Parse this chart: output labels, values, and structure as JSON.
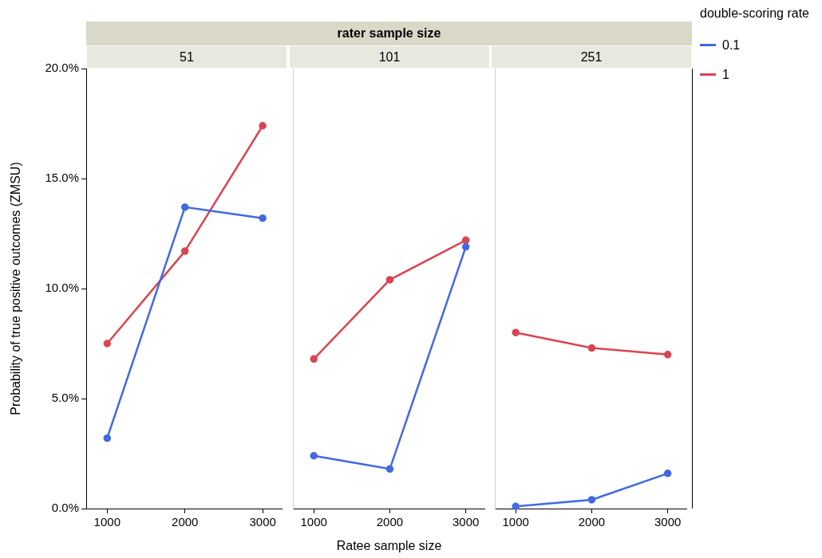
{
  "chart_data": [
    {
      "type": "line",
      "title": "51",
      "xlabel": "Ratee sample size",
      "ylabel": "Probability of true positive outcomes (ZMSU)",
      "legend_title": "double-scoring rate",
      "legend": "top right",
      "marker": "circle",
      "categories": [
        "1000",
        "2000",
        "3000"
      ],
      "ylim": [
        0,
        20
      ],
      "yticks": [
        {
          "value": 0,
          "label": "0.0%"
        },
        {
          "value": 5,
          "label": "5.0%"
        },
        {
          "value": 10,
          "label": "10.0%"
        },
        {
          "value": 15,
          "label": "15.0%"
        },
        {
          "value": 20,
          "label": "20.0%"
        }
      ],
      "series": [
        {
          "name": "0.1",
          "color": "#4169e1",
          "values": [
            3.2,
            13.7,
            13.2
          ]
        },
        {
          "name": "1",
          "color": "#d94452",
          "values": [
            7.5,
            11.7,
            17.4
          ]
        }
      ]
    },
    {
      "type": "line",
      "subtitle": "rater sample size",
      "title": "101",
      "marker": "circle",
      "tick_labels": "x",
      "categories": [
        "1000",
        "2000",
        "3000"
      ],
      "ylim": [
        0,
        20
      ],
      "series": [
        {
          "name": "0.1",
          "color": "#4169e1",
          "values": [
            2.4,
            1.8,
            11.9
          ]
        },
        {
          "name": "1",
          "color": "#d94452",
          "values": [
            6.8,
            10.4,
            12.2
          ]
        }
      ]
    },
    {
      "type": "line",
      "title": "251",
      "marker": "circle",
      "tick_labels": "x",
      "categories": [
        "1000",
        "2000",
        "3000"
      ],
      "ylim": [
        0,
        20
      ],
      "series": [
        {
          "name": "0.1",
          "color": "#4169e1",
          "values": [
            0.1,
            0.4,
            1.6
          ]
        },
        {
          "name": "1",
          "color": "#d94452",
          "values": [
            8.0,
            7.3,
            7.0
          ]
        }
      ]
    }
  ]
}
